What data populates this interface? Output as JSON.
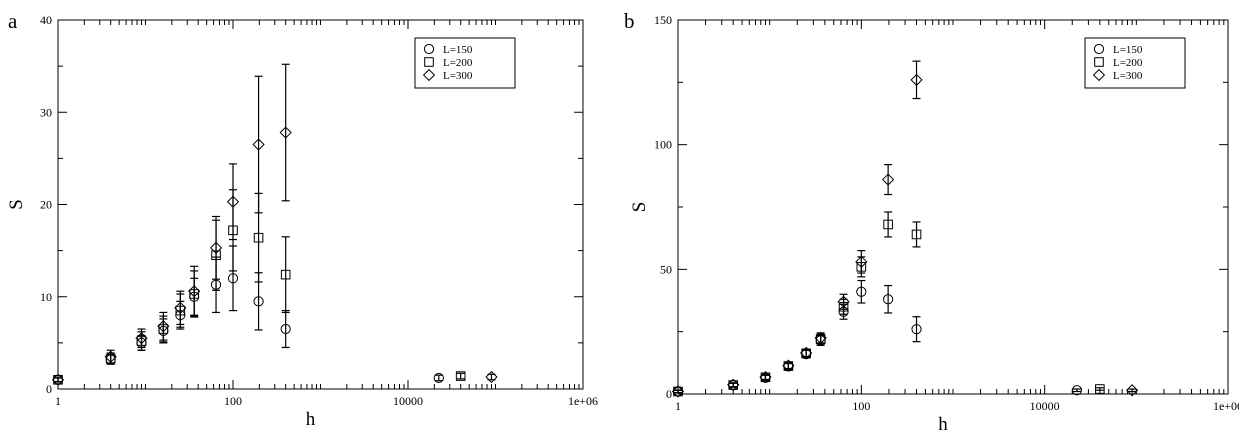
{
  "chart_data": [
    {
      "panel": "a",
      "type": "scatter",
      "xscale": "log",
      "xlim": [
        1,
        1000000
      ],
      "ylim": [
        0,
        40
      ],
      "xticks": [
        1,
        100,
        10000,
        1000000
      ],
      "xtick_labels": [
        "1",
        "100",
        "10000",
        "1e+06"
      ],
      "yticks": [
        0,
        10,
        20,
        30,
        40
      ],
      "ytick_labels": [
        "0",
        "10",
        "20",
        "30",
        "40"
      ],
      "xlabel": "h",
      "ylabel": "S",
      "legend_position": "top-right",
      "series": [
        {
          "name": "L=150",
          "marker": "circle",
          "x": [
            1,
            4,
            9,
            16,
            25,
            36,
            64,
            100,
            196,
            400,
            22500
          ],
          "y": [
            1.0,
            3.2,
            5.0,
            6.3,
            8.0,
            10.0,
            11.3,
            12.0,
            9.5,
            6.5,
            1.2
          ],
          "err": [
            0.2,
            0.5,
            0.8,
            1.3,
            1.5,
            2.0,
            3.0,
            3.5,
            3.1,
            2.0,
            0.3
          ]
        },
        {
          "name": "L=200",
          "marker": "square",
          "x": [
            1,
            4,
            9,
            16,
            25,
            36,
            64,
            100,
            196,
            400,
            40000
          ],
          "y": [
            1.0,
            3.3,
            5.2,
            6.5,
            8.5,
            10.3,
            14.5,
            17.2,
            16.4,
            12.4,
            1.4
          ],
          "err": [
            0.2,
            0.6,
            1.0,
            1.4,
            1.8,
            2.5,
            3.8,
            4.4,
            4.8,
            4.1,
            0.3
          ]
        },
        {
          "name": "L=300",
          "marker": "diamond",
          "x": [
            1,
            4,
            9,
            16,
            25,
            36,
            64,
            100,
            196,
            400,
            90000
          ],
          "y": [
            1.0,
            3.5,
            5.5,
            6.8,
            8.8,
            10.6,
            15.3,
            20.3,
            26.5,
            27.8,
            1.3
          ],
          "err": [
            0.2,
            0.7,
            1.0,
            1.5,
            1.8,
            2.7,
            3.4,
            4.1,
            7.4,
            7.4,
            0.3
          ]
        }
      ]
    },
    {
      "panel": "b",
      "type": "scatter",
      "xscale": "log",
      "xlim": [
        1,
        1000000
      ],
      "ylim": [
        0,
        150
      ],
      "xticks": [
        1,
        100,
        10000,
        1000000
      ],
      "xtick_labels": [
        "1",
        "100",
        "10000",
        "1e+06"
      ],
      "yticks": [
        0,
        50,
        100,
        150
      ],
      "ytick_labels": [
        "0",
        "50",
        "100",
        "150"
      ],
      "xlabel": "h",
      "ylabel": "S",
      "legend_position": "top-right",
      "series": [
        {
          "name": "L=150",
          "marker": "circle",
          "x": [
            1,
            4,
            9,
            16,
            25,
            36,
            64,
            100,
            196,
            400,
            22500
          ],
          "y": [
            1.0,
            3.5,
            6.5,
            11.0,
            16.0,
            21.5,
            33.0,
            41.0,
            38.0,
            26.0,
            1.5
          ],
          "err": [
            0.5,
            0.8,
            1.0,
            1.2,
            1.5,
            2.0,
            3.0,
            4.5,
            5.5,
            5.0,
            0.5
          ]
        },
        {
          "name": "L=200",
          "marker": "square",
          "x": [
            1,
            4,
            9,
            16,
            25,
            36,
            64,
            100,
            196,
            400,
            40000
          ],
          "y": [
            1.0,
            3.6,
            6.7,
            11.2,
            16.3,
            22.0,
            35.0,
            51.0,
            68.0,
            64.0,
            2.0
          ],
          "err": [
            0.5,
            0.8,
            1.0,
            1.2,
            1.5,
            2.0,
            3.0,
            4.0,
            5.0,
            5.0,
            0.5
          ]
        },
        {
          "name": "L=300",
          "marker": "diamond",
          "x": [
            1,
            4,
            9,
            16,
            25,
            36,
            64,
            100,
            196,
            400,
            90000
          ],
          "y": [
            1.0,
            3.7,
            6.8,
            11.4,
            16.5,
            22.5,
            37.0,
            53.0,
            86.0,
            126.0,
            1.5
          ],
          "err": [
            0.5,
            0.8,
            1.0,
            1.2,
            1.5,
            2.0,
            3.0,
            4.5,
            6.0,
            7.5,
            0.5
          ]
        }
      ]
    }
  ]
}
